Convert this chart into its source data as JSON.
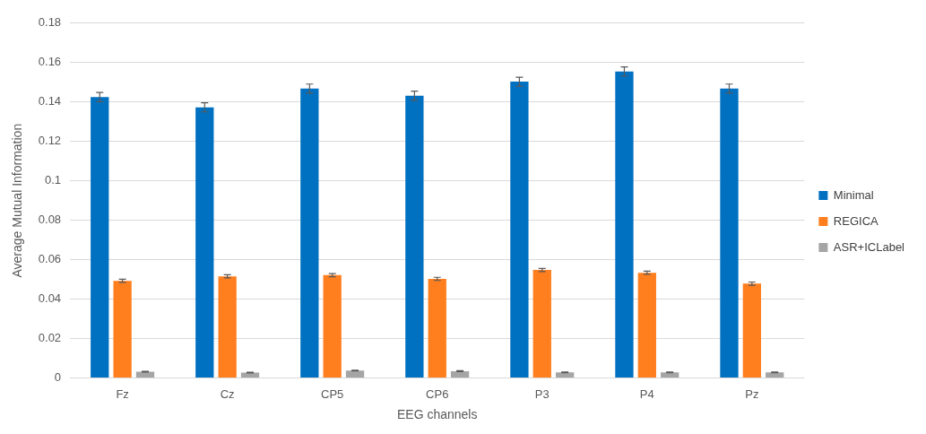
{
  "chart_data": {
    "type": "bar",
    "xlabel": "EEG channels",
    "ylabel": "Average Mutual Information",
    "categories": [
      "Fz",
      "Cz",
      "CP5",
      "CP6",
      "P3",
      "P4",
      "Pz"
    ],
    "series": [
      {
        "name": "Minimal",
        "color": "#0070c0",
        "values": [
          0.1425,
          0.1373,
          0.1468,
          0.1432,
          0.1503,
          0.1555,
          0.1468
        ],
        "errors": [
          0.0023,
          0.0023,
          0.0023,
          0.0023,
          0.0023,
          0.0023,
          0.0023
        ]
      },
      {
        "name": "REGICA",
        "color": "#ff7f1f",
        "values": [
          0.0493,
          0.0516,
          0.0522,
          0.0503,
          0.0548,
          0.0534,
          0.0479
        ],
        "errors": [
          0.0008,
          0.0008,
          0.0008,
          0.0008,
          0.0008,
          0.0008,
          0.0008
        ]
      },
      {
        "name": "ASR+ICLabel",
        "color": "#a5a5a5",
        "values": [
          0.0032,
          0.0028,
          0.0038,
          0.0035,
          0.0029,
          0.0029,
          0.0029
        ],
        "errors": [
          0.0002,
          0.0002,
          0.0002,
          0.0002,
          0.0002,
          0.0002,
          0.0002
        ]
      }
    ],
    "ylim": [
      0,
      0.18
    ],
    "yticks": [
      0,
      0.02,
      0.04,
      0.06,
      0.08,
      0.1,
      0.12,
      0.14,
      0.16,
      0.18
    ],
    "grid": "y",
    "legend": "right"
  }
}
